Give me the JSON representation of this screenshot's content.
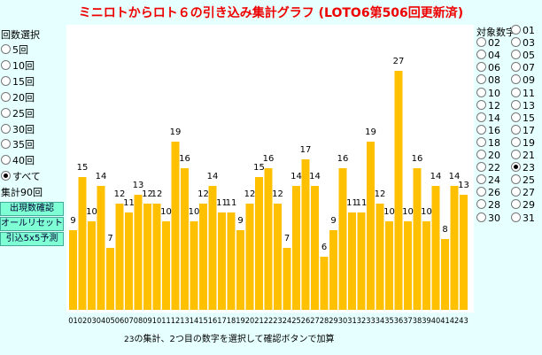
{
  "title": "ミニロトからロト６の引き込み集計グラフ (LOTO6第506回更新済)",
  "left_panel": {
    "heading": "回数選択",
    "options": [
      "5回",
      "10回",
      "15回",
      "20回",
      "25回",
      "30回",
      "35回",
      "40回",
      "すべて"
    ],
    "selected": "すべて",
    "count_label": "集計90回",
    "buttons": [
      "出現数確認",
      "オールリセット",
      "引込5x5予測"
    ]
  },
  "right_panel": {
    "heading": "対象数字",
    "options": [
      "01",
      "02",
      "03",
      "04",
      "05",
      "06",
      "07",
      "08",
      "09",
      "10",
      "11",
      "12",
      "13",
      "14",
      "15",
      "16",
      "17",
      "18",
      "19",
      "20",
      "21",
      "22",
      "23",
      "24",
      "25",
      "26",
      "27",
      "28",
      "29",
      "30",
      "31"
    ],
    "selected": "23"
  },
  "chart_data": {
    "type": "bar",
    "categories": [
      "01",
      "02",
      "03",
      "04",
      "05",
      "06",
      "07",
      "08",
      "09",
      "10",
      "11",
      "12",
      "13",
      "14",
      "15",
      "16",
      "17",
      "18",
      "19",
      "20",
      "21",
      "22",
      "23",
      "24",
      "25",
      "26",
      "27",
      "28",
      "29",
      "30",
      "31",
      "32",
      "33",
      "34",
      "35",
      "36",
      "37",
      "38",
      "39",
      "40",
      "41",
      "42",
      "43"
    ],
    "values": [
      9,
      15,
      10,
      14,
      7,
      12,
      11,
      13,
      12,
      12,
      10,
      19,
      16,
      10,
      12,
      14,
      11,
      11,
      9,
      12,
      15,
      16,
      12,
      7,
      14,
      17,
      14,
      6,
      9,
      16,
      11,
      11,
      19,
      12,
      10,
      27,
      10,
      16,
      10,
      14,
      8,
      14,
      13
    ],
    "color": "#ffc000"
  },
  "footer": {
    "number": "23",
    "text": "の集計、2つ目の数字を選択して確認ボタンで加算"
  }
}
